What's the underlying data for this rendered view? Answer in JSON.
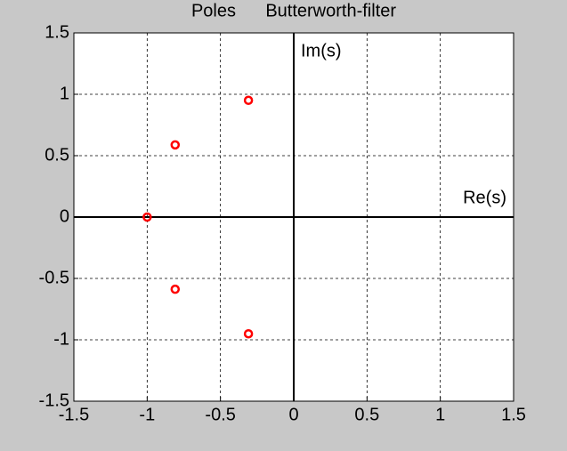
{
  "chart_data": {
    "type": "scatter",
    "title": "Poles      Butterworth-filter",
    "x": [
      -1,
      -0.809,
      -0.809,
      -0.309,
      -0.309
    ],
    "values": [
      0,
      0.588,
      -0.588,
      0.951,
      -0.951
    ],
    "color": "#ff0000",
    "xlim": [
      -1.5,
      1.5
    ],
    "ylim": [
      -1.5,
      1.5
    ],
    "xticks": [
      -1.5,
      -1,
      -0.5,
      0,
      0.5,
      1,
      1.5
    ],
    "yticks": [
      -1.5,
      -1,
      -0.5,
      0,
      0.5,
      1,
      1.5
    ],
    "grid": true,
    "annotations": [
      "Im(s)",
      "Re(s)"
    ]
  }
}
